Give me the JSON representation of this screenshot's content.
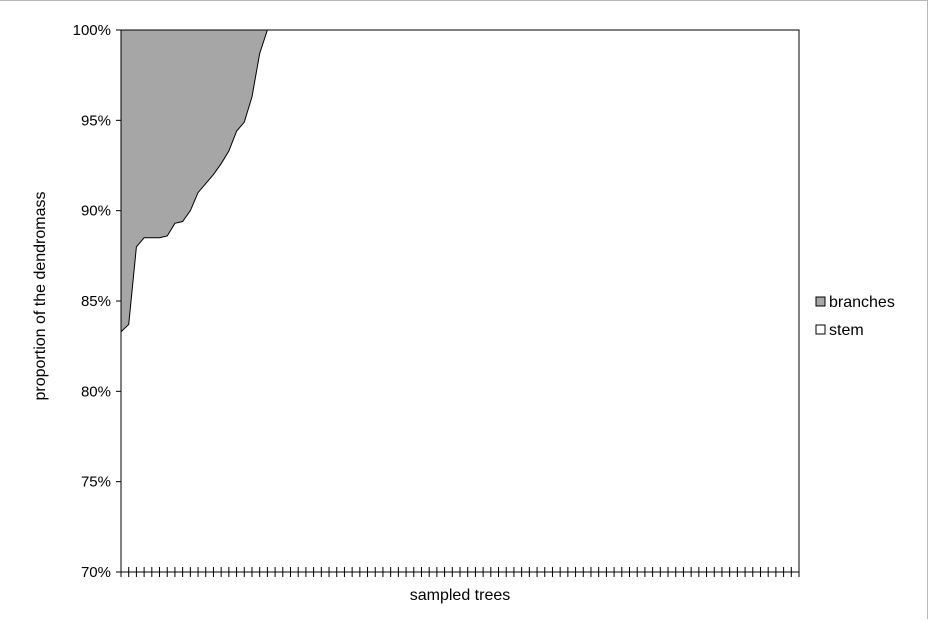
{
  "chart_data": {
    "type": "area",
    "stacking": "percent",
    "title": "",
    "xlabel": "sampled trees",
    "ylabel": "proportion of the dendromass",
    "ylim": [
      0.7,
      1.0
    ],
    "y_ticks": [
      "70%",
      "75%",
      "80%",
      "85%",
      "90%",
      "95%",
      "100%"
    ],
    "y_tick_values": [
      0.7,
      0.75,
      0.8,
      0.85,
      0.9,
      0.95,
      1.0
    ],
    "grid": false,
    "legend_position": "right",
    "x": [
      1,
      2,
      3,
      4,
      5,
      6,
      7,
      8,
      9,
      10,
      11,
      12,
      13,
      14,
      15,
      16,
      17,
      18,
      19,
      20,
      21,
      22,
      23,
      24,
      25,
      26,
      27,
      28,
      29,
      30,
      31,
      32,
      33,
      34,
      35,
      36,
      37,
      38,
      39,
      40,
      41,
      42,
      43,
      44,
      45,
      46,
      47,
      48,
      49,
      50,
      51,
      52,
      53,
      54,
      55,
      56,
      57,
      58,
      59,
      60,
      61,
      62,
      63,
      64,
      65,
      66,
      67,
      68,
      69,
      70,
      71,
      72,
      73,
      74,
      75,
      76,
      77,
      78,
      79,
      80,
      81,
      82,
      83,
      84,
      85,
      86,
      87,
      88,
      89
    ],
    "series": [
      {
        "name": "branches",
        "color": "#a6a6a6",
        "values": [
          0.167,
          0.163,
          0.12,
          0.115,
          0.115,
          0.115,
          0.114,
          0.107,
          0.106,
          0.1,
          0.09,
          0.085,
          0.08,
          0.074,
          0.067,
          0.056,
          0.051,
          0.037,
          0.013,
          0,
          0,
          0,
          0,
          0,
          0,
          0,
          0,
          0,
          0,
          0,
          0,
          0,
          0,
          0,
          0,
          0,
          0,
          0,
          0,
          0,
          0,
          0,
          0,
          0,
          0,
          0,
          0,
          0,
          0,
          0,
          0,
          0,
          0,
          0,
          0,
          0,
          0,
          0,
          0,
          0,
          0,
          0,
          0,
          0,
          0,
          0,
          0,
          0,
          0,
          0,
          0,
          0,
          0,
          0,
          0,
          0,
          0,
          0,
          0,
          0,
          0,
          0,
          0,
          0,
          0,
          0,
          0,
          0,
          0
        ]
      },
      {
        "name": "stem",
        "color": "#ffffff",
        "values": [
          0.833,
          0.837,
          0.88,
          0.885,
          0.885,
          0.885,
          0.886,
          0.893,
          0.894,
          0.9,
          0.91,
          0.915,
          0.92,
          0.926,
          0.933,
          0.944,
          0.949,
          0.963,
          0.987,
          1,
          1,
          1,
          1,
          1,
          1,
          1,
          1,
          1,
          1,
          1,
          1,
          1,
          1,
          1,
          1,
          1,
          1,
          1,
          1,
          1,
          1,
          1,
          1,
          1,
          1,
          1,
          1,
          1,
          1,
          1,
          1,
          1,
          1,
          1,
          1,
          1,
          1,
          1,
          1,
          1,
          1,
          1,
          1,
          1,
          1,
          1,
          1,
          1,
          1,
          1,
          1,
          1,
          1,
          1,
          1,
          1,
          1,
          1,
          1,
          1,
          1,
          1,
          1,
          1,
          1,
          1,
          1,
          1,
          1
        ]
      }
    ],
    "legend": [
      {
        "label": "branches",
        "swatch": "#a6a6a6"
      },
      {
        "label": "stem",
        "swatch": "#ffffff"
      }
    ]
  }
}
